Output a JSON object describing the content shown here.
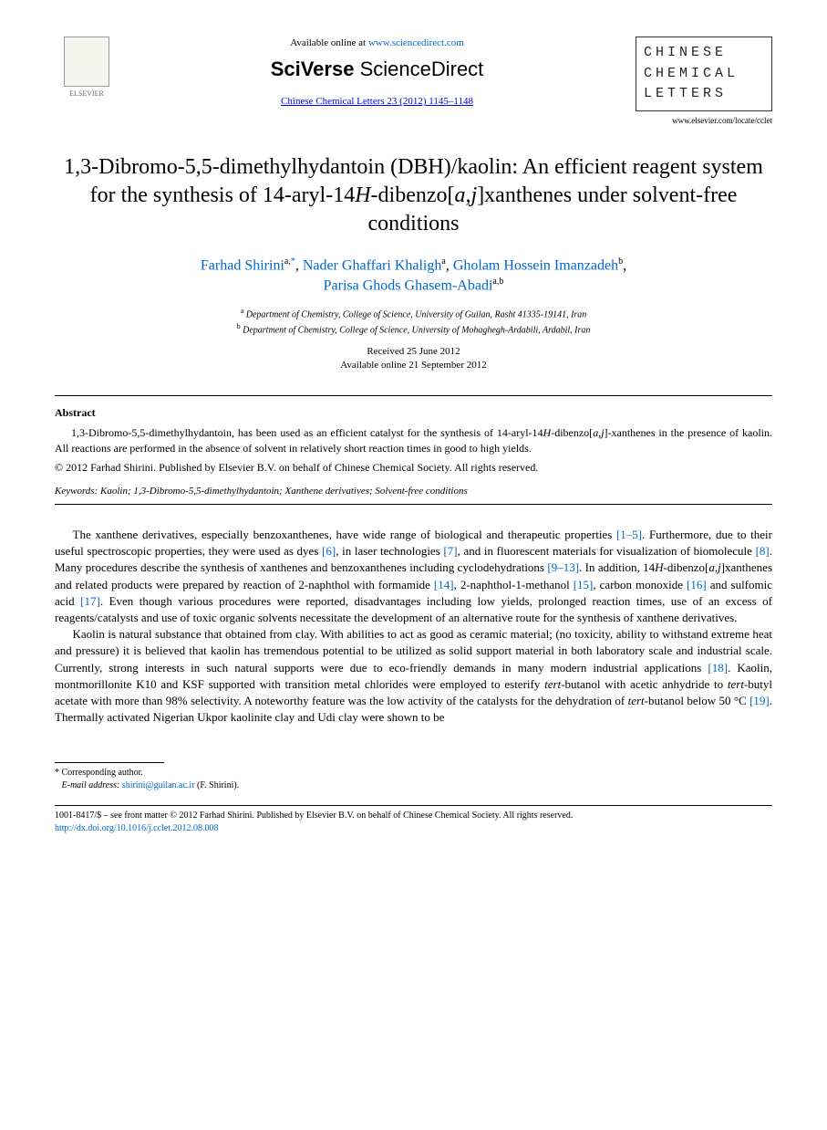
{
  "header": {
    "elsevier_label": "ELSEVIER",
    "available_prefix": "Available online at ",
    "available_url": "www.sciencedirect.com",
    "sciverse_bold": "SciVerse ",
    "sciverse_light": "ScienceDirect",
    "journal_citation": "Chinese Chemical Letters 23 (2012) 1145–1148",
    "journal_box_line1": "Chinese",
    "journal_box_line2": "Chemical",
    "journal_box_line3": "Letters",
    "journal_url": "www.elsevier.com/locate/cclet"
  },
  "title": {
    "full": "1,3-Dibromo-5,5-dimethylhydantoin (DBH)/kaolin: An efficient reagent system for the synthesis of 14-aryl-14H-dibenzo[a,j]xanthenes under solvent-free conditions"
  },
  "authors": {
    "a1_name": "Farhad Shirini",
    "a1_sup": "a,",
    "a1_star": "*",
    "a2_name": "Nader Ghaffari Khaligh",
    "a2_sup": "a",
    "a3_name": "Gholam Hossein Imanzadeh",
    "a3_sup": "b",
    "a4_name": "Parisa Ghods Ghasem-Abadi",
    "a4_sup": "a,b"
  },
  "affiliations": {
    "a_sup": "a",
    "a_text": "Department of Chemistry, College of Science, University of Guilan, Rasht 41335-19141, Iran",
    "b_sup": "b",
    "b_text": "Department of Chemistry, College of Science, University of Mohaghegh-Ardabili, Ardabil, Iran"
  },
  "dates": {
    "received": "Received 25 June 2012",
    "online": "Available online 21 September 2012"
  },
  "abstract": {
    "heading": "Abstract",
    "body_p1_a": "1,3-Dibromo-5,5-dimethylhydantoin, has been used as an efficient catalyst for the synthesis of 14-aryl-14",
    "body_p1_b": "H",
    "body_p1_c": "-dibenzo[",
    "body_p1_d": "a,j",
    "body_p1_e": "]-xanthenes in the presence of kaolin. All reactions are performed in the absence of solvent in relatively short reaction times in good to high yields.",
    "copyright": "© 2012 Farhad Shirini. Published by Elsevier B.V. on behalf of Chinese Chemical Society. All rights reserved."
  },
  "keywords": {
    "label": "Keywords:",
    "text": " Kaolin; 1,3-Dibromo-5,5-dimethylhydantoin; Xanthene derivatives; Solvent-free conditions"
  },
  "body": {
    "p1_a": "The xanthene derivatives, especially benzoxanthenes, have wide range of biological and therapeutic properties ",
    "p1_ref1": "[1–5]",
    "p1_b": ". Furthermore, due to their useful spectroscopic properties, they were used as dyes ",
    "p1_ref2": "[6]",
    "p1_c": ", in laser technologies ",
    "p1_ref3": "[7]",
    "p1_d": ", and in fluorescent materials for visualization of biomolecule ",
    "p1_ref4": "[8]",
    "p1_e": ". Many procedures describe the synthesis of xanthenes and benzoxanthenes including cyclodehydrations ",
    "p1_ref5": "[9–13]",
    "p1_f": ". In addition, 14",
    "p1_g": "H",
    "p1_h": "-dibenzo[",
    "p1_i": "a,j",
    "p1_j": "]xanthenes and related products were prepared by reaction of 2-naphthol with formamide ",
    "p1_ref6": "[14]",
    "p1_k": ", 2-naphthol-1-methanol ",
    "p1_ref7": "[15]",
    "p1_l": ", carbon monoxide ",
    "p1_ref8": "[16]",
    "p1_m": " and sulfomic acid ",
    "p1_ref9": "[17]",
    "p1_n": ". Even though various procedures were reported, disadvantages including low yields, prolonged reaction times, use of an excess of reagents/catalysts and use of toxic organic solvents necessitate the development of an alternative route for the synthesis of xanthene derivatives.",
    "p2_a": "Kaolin is natural substance that obtained from clay. With abilities to act as good as ceramic material; (no toxicity, ability to withstand extreme heat and pressure) it is believed that kaolin has tremendous potential to be utilized as solid support material in both laboratory scale and industrial scale. Currently, strong interests in such natural supports were due to eco-friendly demands in many modern industrial applications ",
    "p2_ref1": "[18]",
    "p2_b": ". Kaolin, montmorillonite K10 and KSF supported with transition metal chlorides were employed to esterify ",
    "p2_i1": "tert",
    "p2_c": "-butanol with acetic anhydride to ",
    "p2_i2": "tert",
    "p2_d": "-butyl acetate with more than 98% selectivity. A noteworthy feature was the low activity of the catalysts for the dehydration of ",
    "p2_i3": "tert",
    "p2_e": "-butanol below 50 °C ",
    "p2_ref2": "[19]",
    "p2_f": ". Thermally activated Nigerian Ukpor kaolinite clay and Udi clay were shown to be"
  },
  "footnotes": {
    "corr_label": "* Corresponding author.",
    "email_label": "E-mail address:",
    "email_addr": "shirini@guilan.ac.ir",
    "email_who": " (F. Shirini)."
  },
  "front_matter": {
    "issn": "1001-8417/$ – see front matter © 2012 Farhad Shirini. Published by Elsevier B.V. on behalf of Chinese Chemical Society. All rights reserved.",
    "doi": "http://dx.doi.org/10.1016/j.cclet.2012.08.008"
  },
  "colors": {
    "link": "#0066cc",
    "text": "#000000",
    "background": "#ffffff"
  }
}
